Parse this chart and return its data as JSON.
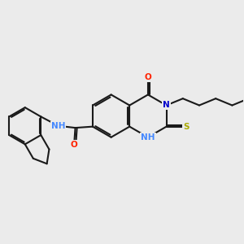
{
  "background_color": "#ebebeb",
  "bond_color": "#1a1a1a",
  "bond_width": 1.5,
  "atom_colors": {
    "N": "#0000cc",
    "O": "#ff2200",
    "S": "#aaaa00",
    "NH": "#4488ff"
  },
  "font_size": 7.5,
  "figsize": [
    3.0,
    3.0
  ],
  "dpi": 100
}
